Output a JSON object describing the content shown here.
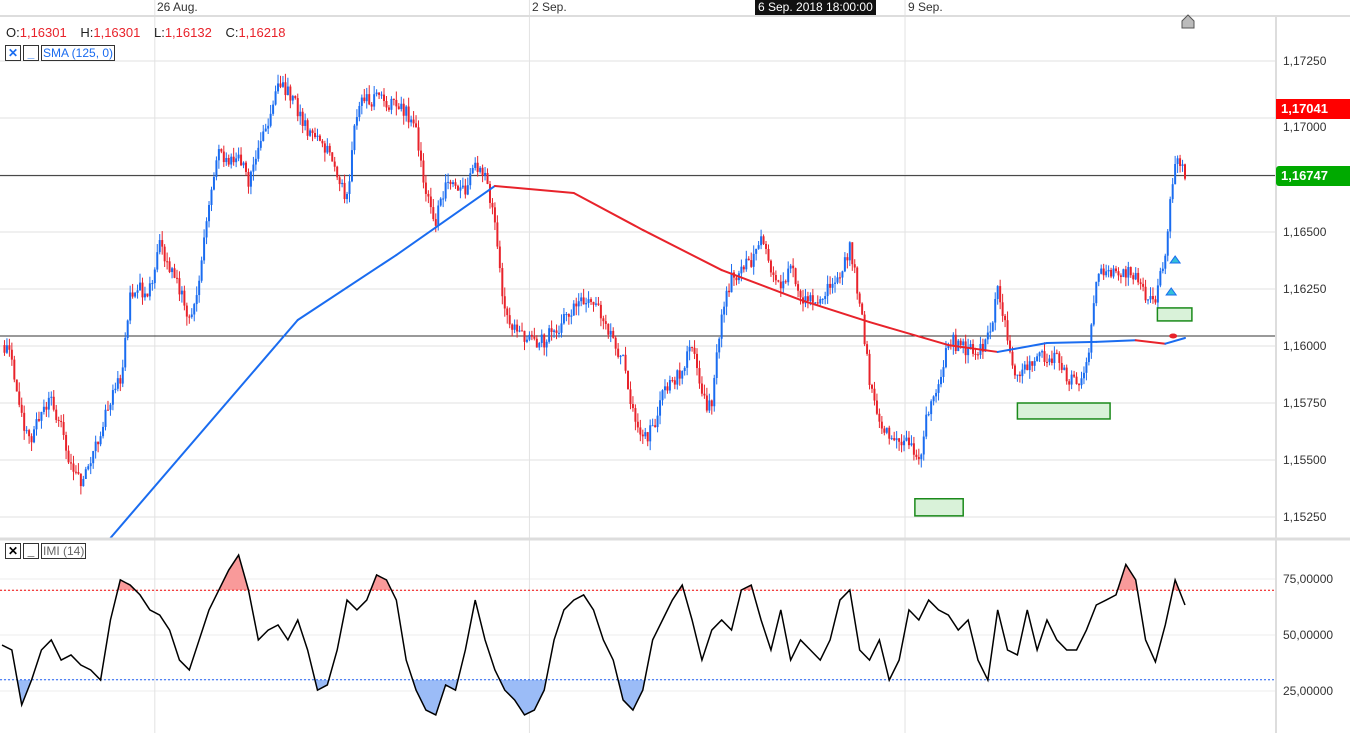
{
  "header": {
    "ohlc": [
      {
        "label": "O:",
        "value": "1,16301"
      },
      {
        "label": "H:",
        "value": "1,16301"
      },
      {
        "label": "L:",
        "value": "1,16132"
      },
      {
        "label": "C:",
        "value": "1,16218"
      }
    ],
    "crosshair_time": "6 Sep. 2018 18:00:00"
  },
  "indicators": {
    "sma": {
      "label": "SMA (125, 0)",
      "close_icon": "close-x-icon",
      "minimize_icon": "minimize-icon",
      "color": "#1a6cf0",
      "down_color": "#e8232b"
    },
    "imi": {
      "label": "IMI (14)",
      "close_icon": "close-x-icon",
      "minimize_icon": "minimize-icon"
    }
  },
  "colors": {
    "up": "#1a6cf0",
    "down": "#e8232b",
    "last_high_label": "#ff0000",
    "current_label": "#00aa00",
    "overbought_fill": "#f99a9a",
    "oversold_fill": "#9bbcf7",
    "annotation_fill": "#d9f2d9",
    "annotation_stroke": "#1a8a1a"
  },
  "chart_data": [
    {
      "type": "candlestick",
      "instrument_axis": "price",
      "x_ticks": [
        {
          "label": "26 Aug.",
          "index": 15.5
        },
        {
          "label": "2 Sep.",
          "index": 53.5
        },
        {
          "label": "9 Sep.",
          "index": 91.6
        }
      ],
      "y_ticks": [
        "1,17250",
        "1,17000",
        "1,16500",
        "1,16250",
        "1,16000",
        "1,15750",
        "1,15500",
        "1,15250"
      ],
      "y_tick_values": [
        1.1725,
        1.17,
        1.165,
        1.1625,
        1.16,
        1.1575,
        1.155,
        1.1525
      ],
      "ylim": [
        1.15095,
        1.17365
      ],
      "grid": true,
      "closes": [
        1.16004,
        1.15939,
        1.15675,
        1.15588,
        1.15719,
        1.15763,
        1.15632,
        1.15456,
        1.15412,
        1.155,
        1.15632,
        1.15763,
        1.15851,
        1.16202,
        1.16246,
        1.16246,
        1.16465,
        1.16333,
        1.16246,
        1.16114,
        1.16289,
        1.1664,
        1.1686,
        1.16816,
        1.16816,
        1.16728,
        1.1686,
        1.16991,
        1.17167,
        1.17123,
        1.17035,
        1.16947,
        1.16925,
        1.1686,
        1.16728,
        1.1664,
        1.17035,
        1.17079,
        1.17079,
        1.17079,
        1.17035,
        1.17035,
        1.16947,
        1.16684,
        1.16553,
        1.16684,
        1.16706,
        1.16684,
        1.16772,
        1.16772,
        1.16509,
        1.16158,
        1.1607,
        1.16026,
        1.16004,
        1.16026,
        1.1607,
        1.16114,
        1.16158,
        1.16202,
        1.1618,
        1.16114,
        1.16026,
        1.15939,
        1.15719,
        1.15588,
        1.15632,
        1.15807,
        1.15851,
        1.15895,
        1.16026,
        1.15763,
        1.15719,
        1.16158,
        1.16289,
        1.16333,
        1.16377,
        1.16465,
        1.16333,
        1.16246,
        1.16377,
        1.16202,
        1.16202,
        1.16224,
        1.16246,
        1.16289,
        1.16421,
        1.16202,
        1.15851,
        1.15675,
        1.15588,
        1.15588,
        1.15566,
        1.155,
        1.15719,
        1.15851,
        1.16026,
        1.16004,
        1.15982,
        1.15961,
        1.16026,
        1.16246,
        1.16026,
        1.15851,
        1.15895,
        1.15982,
        1.15939,
        1.15939,
        1.15851,
        1.15829,
        1.15895,
        1.16289,
        1.16333,
        1.16311,
        1.16333,
        1.16289,
        1.16224,
        1.16202,
        1.16421,
        1.16816,
        1.16747
      ],
      "sma_points": [
        [
          11,
          1.15158
        ],
        [
          30,
          1.16114
        ],
        [
          40,
          1.16399
        ],
        [
          50,
          1.16702
        ],
        [
          58,
          1.16671
        ],
        [
          65,
          1.16509
        ],
        [
          73,
          1.16333
        ],
        [
          81,
          1.16202
        ],
        [
          88,
          1.16105
        ],
        [
          96,
          1.16004
        ],
        [
          101,
          1.15974
        ],
        [
          106,
          1.16013
        ],
        [
          111,
          1.16018
        ],
        [
          115,
          1.16025
        ],
        [
          118,
          1.1601
        ],
        [
          120,
          1.16035
        ]
      ],
      "sma_down_ranges": [
        [
          50,
          101
        ],
        [
          114,
          118
        ]
      ],
      "horizontal_lines": [
        1.16747,
        1.16044
      ],
      "price_labels": [
        {
          "label": "1,17041",
          "value": 1.17041,
          "kind": "high"
        },
        {
          "label": "1,16747",
          "value": 1.16747,
          "kind": "current"
        }
      ],
      "annotations": [
        {
          "type": "rectangle",
          "from_index": 92.6,
          "to_index": 97.5,
          "from": 1.15255,
          "to": 1.1533
        },
        {
          "type": "rectangle",
          "from_index": 103.0,
          "to_index": 112.4,
          "from": 1.1568,
          "to": 1.1575
        },
        {
          "type": "rectangle",
          "from_index": 117.2,
          "to_index": 120.7,
          "from": 1.1611,
          "to": 1.16167
        }
      ],
      "markers": [
        {
          "type": "triangle-up",
          "index": 119.0,
          "value": 1.16377,
          "color": "#33c0d8"
        },
        {
          "type": "triangle-up",
          "index": 118.6,
          "value": 1.16237,
          "color": "#33c0d8"
        },
        {
          "type": "dot",
          "index": 118.8,
          "value": 1.16044,
          "color": "#e8232b"
        }
      ]
    },
    {
      "type": "line",
      "name": "IMI (14)",
      "y_ticks": [
        "75,00000",
        "50,00000",
        "25,00000"
      ],
      "y_tick_values": [
        75,
        50,
        25
      ],
      "ylim": [
        8,
        92
      ],
      "overbought": 70,
      "oversold": 30,
      "values": [
        45.5,
        43.3,
        18.8,
        29.9,
        43.3,
        47.8,
        38.8,
        41.1,
        36.6,
        34.4,
        29.9,
        56.7,
        74.6,
        72.3,
        67.9,
        61.2,
        58.9,
        52.2,
        38.8,
        34.4,
        47.8,
        61.2,
        70.1,
        79.0,
        85.7,
        70.1,
        47.8,
        52.2,
        54.5,
        47.8,
        56.7,
        43.3,
        25.4,
        27.7,
        43.3,
        65.6,
        61.2,
        65.6,
        76.8,
        74.6,
        65.6,
        38.8,
        25.4,
        16.5,
        14.3,
        27.7,
        25.4,
        43.3,
        65.6,
        47.8,
        34.4,
        25.4,
        21.0,
        14.3,
        16.5,
        25.4,
        47.8,
        61.2,
        65.6,
        67.9,
        61.2,
        47.8,
        38.8,
        21.0,
        16.5,
        25.4,
        47.8,
        56.7,
        65.6,
        72.3,
        56.7,
        38.8,
        52.2,
        56.7,
        52.2,
        70.1,
        72.3,
        56.7,
        43.3,
        61.2,
        38.8,
        47.8,
        43.3,
        38.8,
        47.8,
        65.6,
        70.1,
        43.3,
        38.8,
        47.8,
        29.9,
        38.8,
        61.2,
        56.7,
        65.6,
        61.2,
        58.9,
        52.2,
        56.7,
        38.8,
        29.9,
        61.2,
        43.3,
        41.1,
        61.2,
        43.3,
        56.7,
        47.8,
        43.3,
        43.3,
        52.2,
        63.4,
        65.6,
        67.9,
        81.5,
        74.6,
        47.8,
        38.0,
        54.5,
        74.6,
        63.4
      ]
    }
  ]
}
